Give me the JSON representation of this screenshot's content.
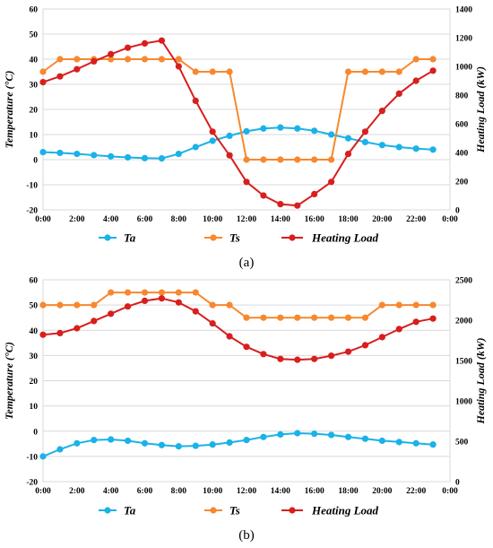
{
  "chart_data": [
    {
      "panel_label": "(a)",
      "type": "line",
      "x": [
        "0:00",
        "1:00",
        "2:00",
        "3:00",
        "4:00",
        "5:00",
        "6:00",
        "7:00",
        "8:00",
        "9:00",
        "10:00",
        "11:00",
        "12:00",
        "13:00",
        "14:00",
        "15:00",
        "16:00",
        "17:00",
        "18:00",
        "19:00",
        "20:00",
        "21:00",
        "22:00",
        "23:00"
      ],
      "x_tick_labels": [
        "0:00",
        "2:00",
        "4:00",
        "6:00",
        "8:00",
        "10:00",
        "12:00",
        "14:00",
        "16:00",
        "18:00",
        "20:00",
        "22:00",
        "0:00"
      ],
      "ylabel": "Temperature (°C)",
      "ylim": [
        -20,
        60
      ],
      "y_ticks": [
        -20,
        -10,
        0,
        10,
        20,
        30,
        40,
        50,
        60
      ],
      "y2label": "Heating Load (kW)",
      "y2lim": [
        0,
        1400
      ],
      "y2_ticks": [
        0,
        200,
        400,
        600,
        800,
        1000,
        1200,
        1400
      ],
      "grid": true,
      "legend": "bottom",
      "series": [
        {
          "name": "Ta",
          "axis": "left",
          "color": "#1ab2e8",
          "values": [
            3.0,
            2.7,
            2.3,
            1.8,
            1.3,
            0.9,
            0.6,
            0.5,
            2.3,
            5.0,
            7.5,
            9.5,
            11.3,
            12.4,
            12.8,
            12.4,
            11.5,
            10.0,
            8.5,
            7.0,
            5.8,
            5.0,
            4.4,
            4.0
          ]
        },
        {
          "name": "Ts",
          "axis": "left",
          "color": "#f7882f",
          "values": [
            35,
            40,
            40,
            40,
            40,
            40,
            40,
            40,
            40,
            35,
            35,
            35,
            0,
            0,
            0,
            0,
            0,
            0,
            35,
            35,
            35,
            35,
            40,
            40
          ]
        },
        {
          "name": "Heating Load",
          "axis": "right",
          "color": "#d81e1e",
          "values": [
            890,
            930,
            980,
            1035,
            1085,
            1130,
            1160,
            1180,
            1000,
            760,
            545,
            380,
            195,
            100,
            40,
            30,
            110,
            195,
            390,
            545,
            690,
            810,
            900,
            970
          ]
        }
      ]
    },
    {
      "panel_label": "(b)",
      "type": "line",
      "x": [
        "0:00",
        "1:00",
        "2:00",
        "3:00",
        "4:00",
        "5:00",
        "6:00",
        "7:00",
        "8:00",
        "9:00",
        "10:00",
        "11:00",
        "12:00",
        "13:00",
        "14:00",
        "15:00",
        "16:00",
        "17:00",
        "18:00",
        "19:00",
        "20:00",
        "21:00",
        "22:00",
        "23:00"
      ],
      "x_tick_labels": [
        "0:00",
        "2:00",
        "4:00",
        "6:00",
        "8:00",
        "10:00",
        "12:00",
        "14:00",
        "16:00",
        "18:00",
        "20:00",
        "22:00",
        "0:00"
      ],
      "ylabel": "Temperature (°C)",
      "ylim": [
        -20,
        60
      ],
      "y_ticks": [
        -20,
        -10,
        0,
        10,
        20,
        30,
        40,
        50,
        60
      ],
      "y2label": "Heating Load (kW)",
      "y2lim": [
        0,
        2500
      ],
      "y2_ticks": [
        0,
        500,
        1000,
        1500,
        2000,
        2500
      ],
      "grid": true,
      "legend": "bottom",
      "series": [
        {
          "name": "Ta",
          "axis": "left",
          "color": "#1ab2e8",
          "values": [
            -10.0,
            -7.2,
            -4.8,
            -3.5,
            -3.3,
            -3.8,
            -4.8,
            -5.5,
            -6.0,
            -5.8,
            -5.3,
            -4.5,
            -3.5,
            -2.3,
            -1.3,
            -0.8,
            -1.0,
            -1.5,
            -2.3,
            -3.0,
            -3.8,
            -4.3,
            -4.8,
            -5.3
          ]
        },
        {
          "name": "Ts",
          "axis": "left",
          "color": "#f7882f",
          "values": [
            50,
            50,
            50,
            50,
            55,
            55,
            55,
            55,
            55,
            55,
            50,
            50,
            45,
            45,
            45,
            45,
            45,
            45,
            45,
            45,
            50,
            50,
            50,
            50
          ]
        },
        {
          "name": "Heating Load",
          "axis": "right",
          "color": "#d81e1e",
          "values": [
            1820,
            1840,
            1900,
            1990,
            2080,
            2170,
            2240,
            2270,
            2220,
            2110,
            1960,
            1800,
            1670,
            1580,
            1520,
            1510,
            1520,
            1560,
            1610,
            1690,
            1790,
            1890,
            1980,
            2020
          ]
        }
      ]
    }
  ]
}
